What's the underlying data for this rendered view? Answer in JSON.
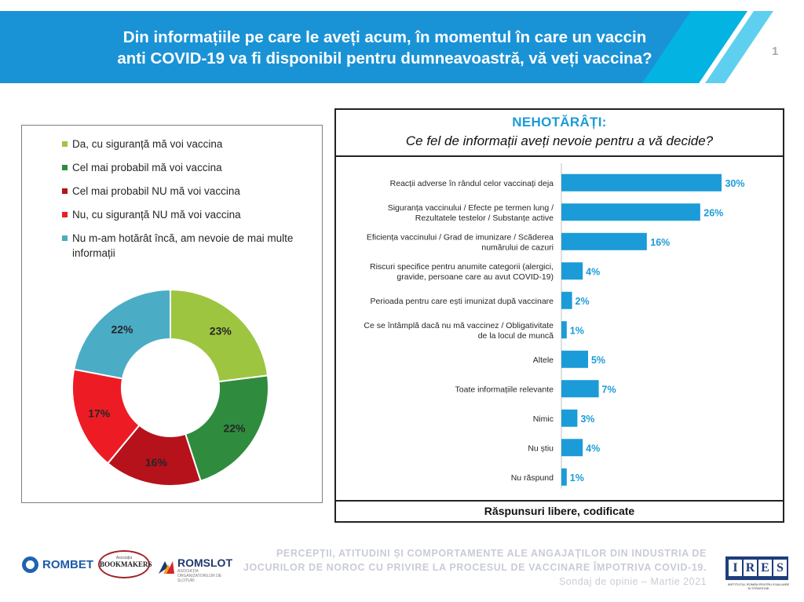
{
  "header": {
    "title_line1": "Din informațiile pe care le aveți acum, în momentul în care un vaccin",
    "title_line2": "anti COVID-19 va fi disponibil pentru dumneavoastră, vă veți vaccina?",
    "slide_number": "1"
  },
  "colors": {
    "header_blue": "#1a93d6",
    "header_cyan": "#00b8e4",
    "bar_blue": "#1b9bd7"
  },
  "chart_data": [
    {
      "type": "donut",
      "legend": [
        {
          "label": "Da, cu siguranță mă voi vaccina",
          "color": "#9dc540"
        },
        {
          "label": "Cel mai probabil mă voi vaccina",
          "color": "#2f8c3e"
        },
        {
          "label": "Cel mai probabil NU mă voi vaccina",
          "color": "#b5121b"
        },
        {
          "label": "Nu, cu siguranță NU mă voi vaccina",
          "color": "#ed1c24"
        },
        {
          "label": "Nu m-am hotărât încă, am nevoie de mai multe informații",
          "color": "#4bacc6"
        }
      ],
      "values": [
        23,
        22,
        16,
        17,
        22
      ],
      "value_labels": [
        "23%",
        "22%",
        "16%",
        "17%",
        "22%"
      ]
    },
    {
      "type": "bar",
      "orientation": "horizontal",
      "title": "NEHOTĂRÂȚI:",
      "subtitle": "Ce fel de informații aveți nevoie pentru a vă decide?",
      "categories": [
        [
          "Reacții adverse în rândul celor vaccinați deja"
        ],
        [
          "Siguranța vaccinului / Efecte pe termen lung /",
          "Rezultatele testelor / Substanțe active"
        ],
        [
          "Eficiența vaccinului / Grad de imunizare / Scăderea",
          "numărului de cazuri"
        ],
        [
          "Riscuri specifice pentru anumite categorii (alergici,",
          "gravide, persoane care au avut COVID-19)"
        ],
        [
          "Perioada pentru care ești imunizat după vaccinare"
        ],
        [
          "Ce se întâmplă dacă nu mă vaccinez / Obligativitate",
          "de la locul de muncă"
        ],
        [
          "Altele"
        ],
        [
          "Toate informațiile relevante"
        ],
        [
          "Nimic"
        ],
        [
          "Nu știu"
        ],
        [
          "Nu răspund"
        ]
      ],
      "values": [
        30,
        26,
        16,
        4,
        2,
        1,
        5,
        7,
        3,
        4,
        1
      ],
      "value_labels": [
        "30%",
        "26%",
        "16%",
        "4%",
        "2%",
        "1%",
        "5%",
        "7%",
        "3%",
        "4%",
        "1%"
      ],
      "footer": "Răspunsuri libere, codificate"
    }
  ],
  "footer": {
    "line1": "PERCEPȚII, ATITUDINI ȘI COMPORTAMENTE ALE ANGAJAȚILOR DIN INDUSTRIA DE",
    "line2": "JOCURILOR DE NOROC CU PRIVIRE LA PROCESUL DE VACCINARE ÎMPOTRIVA COVID-19.",
    "line3": "Sondaj de opinie – Martie 2021"
  },
  "logos": {
    "rombet": "ROMBET",
    "bookmakers_top": "Asociația",
    "bookmakers": "BOOKMAKERS",
    "romslot": "ROMSLOT",
    "romslot_sub": "ASOCIAȚIA ORGANIZATORILOR DE SLOTURI",
    "ires_letters": [
      "I",
      "R",
      "E",
      "S"
    ],
    "ires_caption": "INSTITUTUL ROMÂN PENTRU EVALUARE ȘI STRATEGIE"
  }
}
